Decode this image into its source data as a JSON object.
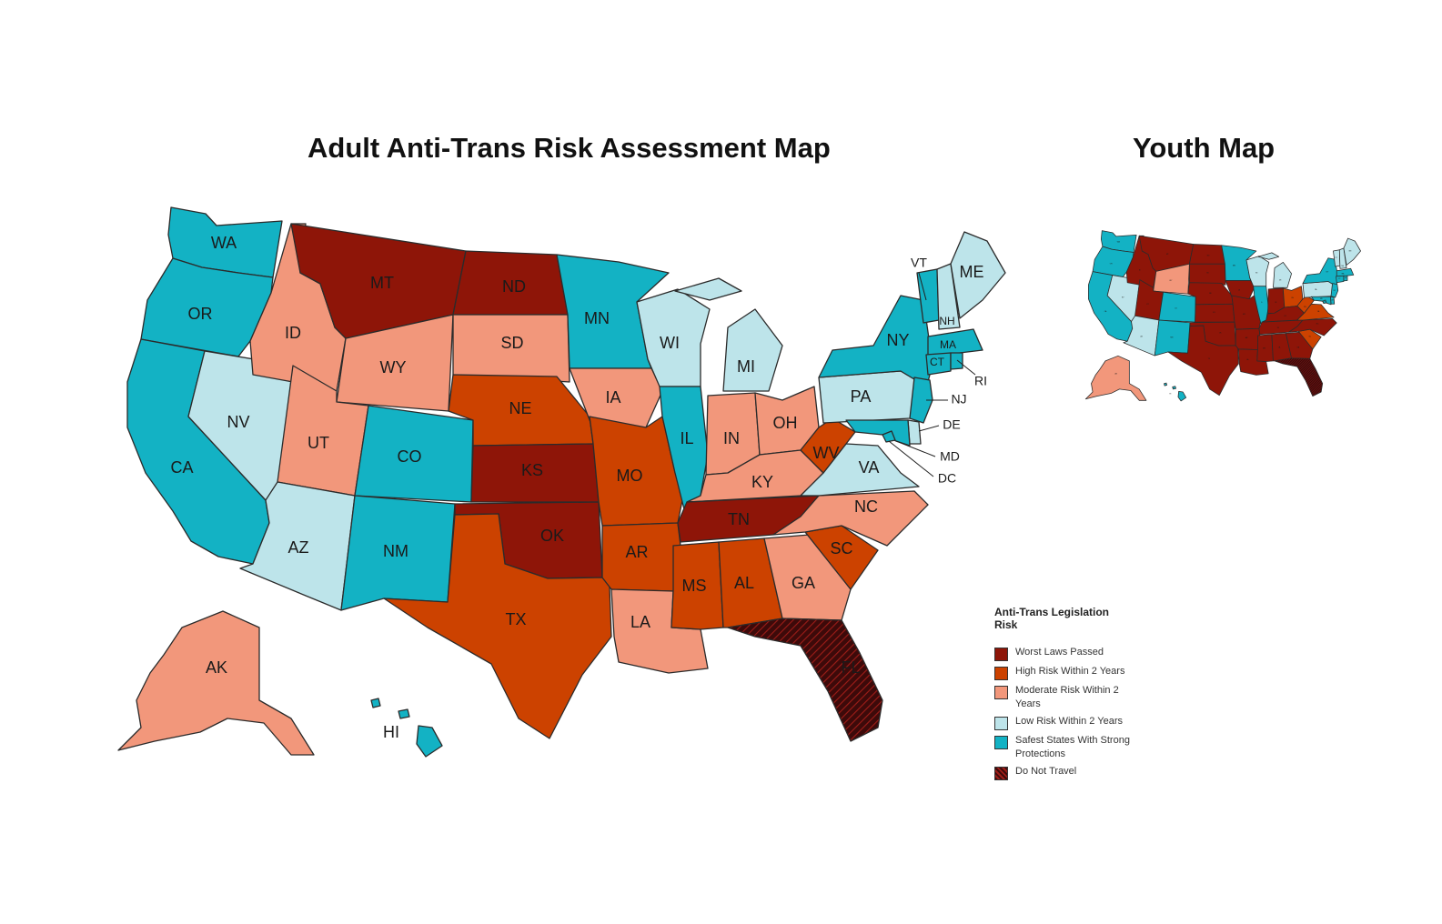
{
  "titles": {
    "main": "Adult Anti-Trans Risk Assessment Map",
    "youth": "Youth Map"
  },
  "colors": {
    "worst": "#8e1508",
    "high": "#cc4200",
    "moderate": "#f2977b",
    "low": "#bde4ea",
    "safest": "#13b2c4",
    "donottravel": "#3d0a0a"
  },
  "legend": {
    "title": "Anti-Trans Legislation Risk",
    "items": [
      {
        "key": "worst",
        "label": "Worst Laws Passed"
      },
      {
        "key": "high",
        "label": "High Risk Within 2 Years"
      },
      {
        "key": "moderate",
        "label": "Moderate Risk Within 2 Years"
      },
      {
        "key": "low",
        "label": "Low Risk Within 2 Years"
      },
      {
        "key": "safest",
        "label": "Safest States With Strong Protections"
      },
      {
        "key": "donottravel",
        "label": "Do Not Travel"
      }
    ]
  },
  "adult_map": {
    "states": [
      {
        "id": "WA",
        "risk": "safest"
      },
      {
        "id": "OR",
        "risk": "safest"
      },
      {
        "id": "CA",
        "risk": "safest"
      },
      {
        "id": "NV",
        "risk": "low"
      },
      {
        "id": "ID",
        "risk": "moderate"
      },
      {
        "id": "MT",
        "risk": "worst"
      },
      {
        "id": "WY",
        "risk": "moderate"
      },
      {
        "id": "UT",
        "risk": "moderate"
      },
      {
        "id": "AZ",
        "risk": "low"
      },
      {
        "id": "CO",
        "risk": "safest"
      },
      {
        "id": "NM",
        "risk": "safest"
      },
      {
        "id": "ND",
        "risk": "worst"
      },
      {
        "id": "SD",
        "risk": "moderate"
      },
      {
        "id": "NE",
        "risk": "high"
      },
      {
        "id": "KS",
        "risk": "worst"
      },
      {
        "id": "OK",
        "risk": "worst"
      },
      {
        "id": "TX",
        "risk": "high"
      },
      {
        "id": "MN",
        "risk": "safest"
      },
      {
        "id": "IA",
        "risk": "moderate"
      },
      {
        "id": "MO",
        "risk": "high"
      },
      {
        "id": "AR",
        "risk": "high"
      },
      {
        "id": "LA",
        "risk": "moderate"
      },
      {
        "id": "WI",
        "risk": "low"
      },
      {
        "id": "IL",
        "risk": "safest"
      },
      {
        "id": "MI",
        "risk": "low"
      },
      {
        "id": "IN",
        "risk": "moderate"
      },
      {
        "id": "OH",
        "risk": "moderate"
      },
      {
        "id": "KY",
        "risk": "moderate"
      },
      {
        "id": "TN",
        "risk": "worst"
      },
      {
        "id": "MS",
        "risk": "high"
      },
      {
        "id": "AL",
        "risk": "high"
      },
      {
        "id": "GA",
        "risk": "moderate"
      },
      {
        "id": "FL",
        "risk": "donottravel"
      },
      {
        "id": "SC",
        "risk": "high"
      },
      {
        "id": "NC",
        "risk": "moderate"
      },
      {
        "id": "VA",
        "risk": "low"
      },
      {
        "id": "WV",
        "risk": "high"
      },
      {
        "id": "PA",
        "risk": "low"
      },
      {
        "id": "NY",
        "risk": "safest"
      },
      {
        "id": "VT",
        "risk": "safest"
      },
      {
        "id": "NH",
        "risk": "low"
      },
      {
        "id": "ME",
        "risk": "low"
      },
      {
        "id": "MA",
        "risk": "safest"
      },
      {
        "id": "CT",
        "risk": "safest"
      },
      {
        "id": "RI",
        "risk": "safest"
      },
      {
        "id": "NJ",
        "risk": "safest"
      },
      {
        "id": "DE",
        "risk": "low"
      },
      {
        "id": "MD",
        "risk": "safest"
      },
      {
        "id": "DC",
        "risk": "safest"
      },
      {
        "id": "AK",
        "risk": "moderate"
      },
      {
        "id": "HI",
        "risk": "safest"
      }
    ]
  },
  "youth_map": {
    "states": [
      {
        "id": "WA",
        "risk": "safest"
      },
      {
        "id": "OR",
        "risk": "safest"
      },
      {
        "id": "CA",
        "risk": "safest"
      },
      {
        "id": "NV",
        "risk": "low"
      },
      {
        "id": "ID",
        "risk": "worst"
      },
      {
        "id": "MT",
        "risk": "worst"
      },
      {
        "id": "WY",
        "risk": "moderate"
      },
      {
        "id": "UT",
        "risk": "worst"
      },
      {
        "id": "AZ",
        "risk": "low"
      },
      {
        "id": "CO",
        "risk": "safest"
      },
      {
        "id": "NM",
        "risk": "safest"
      },
      {
        "id": "ND",
        "risk": "worst"
      },
      {
        "id": "SD",
        "risk": "worst"
      },
      {
        "id": "NE",
        "risk": "worst"
      },
      {
        "id": "KS",
        "risk": "worst"
      },
      {
        "id": "OK",
        "risk": "worst"
      },
      {
        "id": "TX",
        "risk": "worst"
      },
      {
        "id": "MN",
        "risk": "safest"
      },
      {
        "id": "IA",
        "risk": "worst"
      },
      {
        "id": "MO",
        "risk": "worst"
      },
      {
        "id": "AR",
        "risk": "worst"
      },
      {
        "id": "LA",
        "risk": "worst"
      },
      {
        "id": "WI",
        "risk": "low"
      },
      {
        "id": "IL",
        "risk": "safest"
      },
      {
        "id": "MI",
        "risk": "low"
      },
      {
        "id": "IN",
        "risk": "worst"
      },
      {
        "id": "OH",
        "risk": "high"
      },
      {
        "id": "KY",
        "risk": "worst"
      },
      {
        "id": "TN",
        "risk": "worst"
      },
      {
        "id": "MS",
        "risk": "worst"
      },
      {
        "id": "AL",
        "risk": "worst"
      },
      {
        "id": "GA",
        "risk": "worst"
      },
      {
        "id": "FL",
        "risk": "donottravel"
      },
      {
        "id": "SC",
        "risk": "high"
      },
      {
        "id": "NC",
        "risk": "worst"
      },
      {
        "id": "VA",
        "risk": "high"
      },
      {
        "id": "WV",
        "risk": "high"
      },
      {
        "id": "PA",
        "risk": "low"
      },
      {
        "id": "NY",
        "risk": "safest"
      },
      {
        "id": "VT",
        "risk": "low"
      },
      {
        "id": "NH",
        "risk": "low"
      },
      {
        "id": "ME",
        "risk": "low"
      },
      {
        "id": "MA",
        "risk": "safest"
      },
      {
        "id": "CT",
        "risk": "safest"
      },
      {
        "id": "RI",
        "risk": "safest"
      },
      {
        "id": "NJ",
        "risk": "safest"
      },
      {
        "id": "DE",
        "risk": "safest"
      },
      {
        "id": "MD",
        "risk": "safest"
      },
      {
        "id": "DC",
        "risk": "safest"
      },
      {
        "id": "AK",
        "risk": "moderate"
      },
      {
        "id": "HI",
        "risk": "safest"
      }
    ]
  }
}
